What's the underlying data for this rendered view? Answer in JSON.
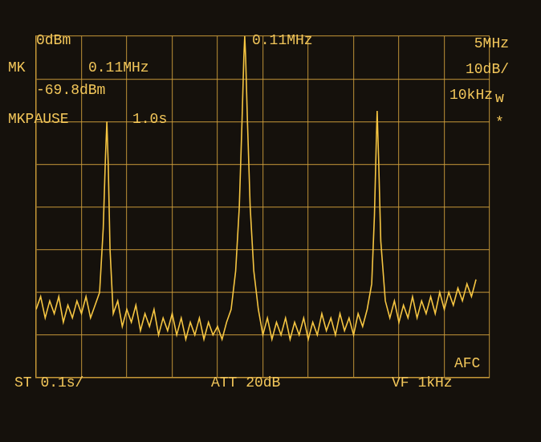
{
  "chart_data": {
    "type": "line",
    "color": "#f5c542",
    "grid": true,
    "tick_labels": false,
    "annotations": [
      "0dBm",
      "MK",
      "0.11MHz",
      "-69.8dBm",
      "MKPAUSE",
      "1.0s",
      "0.11MHz",
      "5MHz",
      "10dB/",
      "10kHz",
      "w",
      "*",
      "ST 0.1s/",
      "ATT 20dB",
      "VF 1kHz",
      "AFC"
    ],
    "xlim": [
      0,
      10
    ],
    "xticks": [
      0,
      1,
      2,
      3,
      4,
      5,
      6,
      7,
      8,
      9,
      10
    ],
    "ylim": [
      -80,
      0
    ],
    "yticks": [
      -80,
      -70,
      -60,
      -50,
      -40,
      -30,
      -20,
      -10,
      0
    ],
    "x": [
      0.0,
      0.1,
      0.2,
      0.3,
      0.4,
      0.5,
      0.6,
      0.7,
      0.8,
      0.9,
      1.0,
      1.1,
      1.2,
      1.3,
      1.4,
      1.48,
      1.53,
      1.56,
      1.59,
      1.63,
      1.7,
      1.8,
      1.9,
      2.0,
      2.1,
      2.2,
      2.3,
      2.4,
      2.5,
      2.6,
      2.7,
      2.8,
      2.9,
      3.0,
      3.1,
      3.2,
      3.3,
      3.4,
      3.5,
      3.6,
      3.7,
      3.8,
      3.9,
      4.0,
      4.1,
      4.2,
      4.3,
      4.4,
      4.48,
      4.54,
      4.58,
      4.6,
      4.62,
      4.66,
      4.72,
      4.8,
      4.9,
      5.0,
      5.1,
      5.2,
      5.3,
      5.4,
      5.5,
      5.6,
      5.7,
      5.8,
      5.9,
      6.0,
      6.1,
      6.2,
      6.3,
      6.4,
      6.5,
      6.6,
      6.7,
      6.8,
      6.9,
      7.0,
      7.1,
      7.2,
      7.3,
      7.4,
      7.46,
      7.5,
      7.52,
      7.55,
      7.6,
      7.7,
      7.8,
      7.9,
      8.0,
      8.1,
      8.2,
      8.3,
      8.4,
      8.5,
      8.6,
      8.7,
      8.8,
      8.9,
      9.0,
      9.1,
      9.2,
      9.3,
      9.4,
      9.5,
      9.6,
      9.7
    ],
    "values": [
      -64,
      -61,
      -66,
      -62,
      -65,
      -61,
      -67,
      -63,
      -66,
      -62,
      -65,
      -61,
      -66,
      -63,
      -60,
      -45,
      -28,
      -20,
      -30,
      -50,
      -65,
      -62,
      -68,
      -64,
      -67,
      -63,
      -69,
      -65,
      -68,
      -64,
      -70,
      -66,
      -69,
      -65,
      -70,
      -66,
      -71,
      -67,
      -70,
      -66,
      -71,
      -67,
      -70,
      -68,
      -71,
      -67,
      -64,
      -55,
      -40,
      -20,
      -5,
      0,
      -5,
      -20,
      -40,
      -55,
      -64,
      -70,
      -66,
      -71,
      -67,
      -70,
      -66,
      -71,
      -67,
      -70,
      -66,
      -71,
      -67,
      -70,
      -65,
      -69,
      -66,
      -70,
      -65,
      -69,
      -66,
      -70,
      -65,
      -68,
      -64,
      -58,
      -42,
      -25,
      -17.5,
      -28,
      -48,
      -62,
      -66,
      -62,
      -67,
      -63,
      -66,
      -61,
      -66,
      -62,
      -65,
      -61,
      -65,
      -60,
      -64,
      -60,
      -63,
      -59,
      -62,
      -58,
      -61,
      -57
    ]
  }
}
